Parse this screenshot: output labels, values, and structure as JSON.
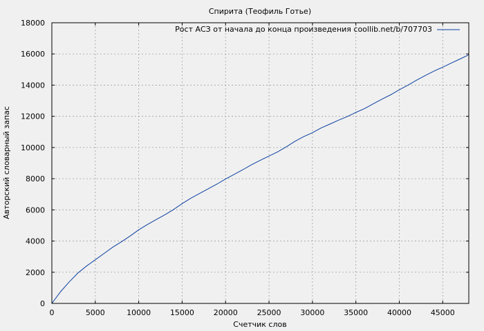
{
  "chart_data": {
    "type": "line",
    "title": "Спирита (Теофиль Готье)",
    "xlabel": "Счетчик слов",
    "ylabel": "Авторский словарный запас",
    "xlim": [
      0,
      48000
    ],
    "ylim": [
      0,
      18000
    ],
    "x_ticks": [
      0,
      5000,
      10000,
      15000,
      20000,
      25000,
      30000,
      35000,
      40000,
      45000
    ],
    "y_ticks": [
      0,
      2000,
      4000,
      6000,
      8000,
      10000,
      12000,
      14000,
      16000,
      18000
    ],
    "grid": true,
    "legend_position": "top-right",
    "series": [
      {
        "name": "Рост АСЗ от начала до конца произведения coollib.net/b/707703",
        "color": "#0a3fa0",
        "x": [
          0,
          1000,
          2000,
          3000,
          4000,
          5000,
          6000,
          7000,
          8000,
          9000,
          10000,
          11000,
          12000,
          13000,
          14000,
          15000,
          16000,
          17000,
          18000,
          19000,
          20000,
          21000,
          22000,
          23000,
          24000,
          25000,
          26000,
          27000,
          28000,
          29000,
          30000,
          31000,
          32000,
          33000,
          34000,
          35000,
          36000,
          37000,
          38000,
          39000,
          40000,
          41000,
          42000,
          43000,
          44000,
          45000,
          46000,
          47000,
          48000
        ],
        "y": [
          0,
          750,
          1380,
          1950,
          2400,
          2800,
          3200,
          3600,
          3950,
          4320,
          4720,
          5060,
          5380,
          5680,
          6020,
          6400,
          6750,
          7050,
          7350,
          7650,
          7980,
          8280,
          8580,
          8900,
          9180,
          9450,
          9720,
          10050,
          10400,
          10700,
          10950,
          11250,
          11500,
          11750,
          11980,
          12250,
          12500,
          12800,
          13100,
          13380,
          13700,
          14000,
          14320,
          14620,
          14900,
          15150,
          15420,
          15680,
          15950
        ]
      }
    ]
  }
}
